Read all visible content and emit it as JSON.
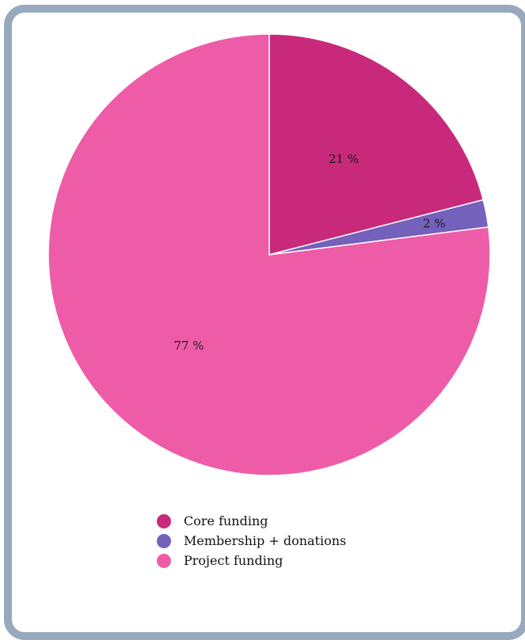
{
  "chart_data": {
    "type": "pie",
    "categories": [
      "Core funding",
      "Membership + donations",
      "Project funding"
    ],
    "values": [
      21,
      2,
      77
    ],
    "labels": [
      "21 %",
      "2 %",
      "77 %"
    ],
    "colors": [
      "#c8297a",
      "#7461bb",
      "#ee5ca8"
    ],
    "legend_position": "bottom-center"
  }
}
